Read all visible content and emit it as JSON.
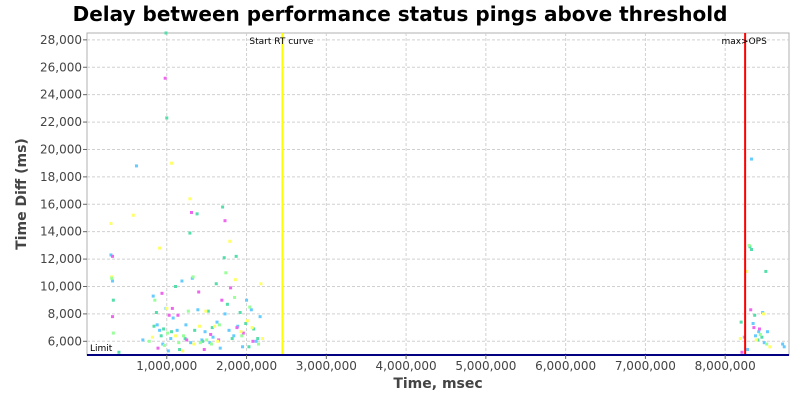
{
  "chart_data": {
    "type": "scatter",
    "title": "Delay between performance status pings above threshold",
    "xlabel": "Time, msec",
    "ylabel": "Time Diff (ms)",
    "xlim": [
      0,
      8800000
    ],
    "ylim": [
      5000,
      28500
    ],
    "x_ticks": [
      1000000,
      2000000,
      3000000,
      4000000,
      5000000,
      6000000,
      7000000,
      8000000
    ],
    "x_tick_labels": [
      "1,000,000",
      "2,000,000",
      "3,000,000",
      "4,000,000",
      "5,000,000",
      "6,000,000",
      "7,000,000",
      "8,000,000"
    ],
    "y_ticks": [
      6000,
      8000,
      10000,
      12000,
      14000,
      16000,
      18000,
      20000,
      22000,
      24000,
      26000,
      28000
    ],
    "y_tick_labels": [
      "6,000",
      "8,000",
      "10,000",
      "12,000",
      "14,000",
      "16,000",
      "18,000",
      "20,000",
      "22,000",
      "24,000",
      "26,000",
      "28,000"
    ],
    "grid": true,
    "threshold": {
      "label": "Limit",
      "value": 5000,
      "color": "#000080"
    },
    "markers": [
      {
        "label": "Start RT curve",
        "x": 2450000,
        "color": "#ffff00"
      },
      {
        "label": "max>OPS",
        "x": 8250000,
        "color": "#ff0000"
      }
    ],
    "series": [
      {
        "color": "#66ccff",
        "points": [
          [
            300000,
            12300
          ],
          [
            320000,
            10400
          ],
          [
            620000,
            18800
          ],
          [
            700000,
            6100
          ],
          [
            830000,
            9300
          ],
          [
            880000,
            7200
          ],
          [
            910000,
            6800
          ],
          [
            950000,
            5800
          ],
          [
            990000,
            8400
          ],
          [
            1020000,
            5300
          ],
          [
            1050000,
            6200
          ],
          [
            1080000,
            7700
          ],
          [
            1130000,
            6800
          ],
          [
            1190000,
            10400
          ],
          [
            1240000,
            7200
          ],
          [
            1300000,
            5900
          ],
          [
            1320000,
            10600
          ],
          [
            1390000,
            8300
          ],
          [
            1440000,
            6100
          ],
          [
            1480000,
            6700
          ],
          [
            1540000,
            5900
          ],
          [
            1580000,
            6300
          ],
          [
            1630000,
            7400
          ],
          [
            1670000,
            5500
          ],
          [
            1730000,
            8000
          ],
          [
            1780000,
            6800
          ],
          [
            1840000,
            6400
          ],
          [
            1890000,
            7100
          ],
          [
            1950000,
            5600
          ],
          [
            2000000,
            9000
          ],
          [
            2060000,
            8300
          ],
          [
            2120000,
            6000
          ],
          [
            2170000,
            7800
          ],
          [
            8240000,
            6300
          ],
          [
            8280000,
            5400
          ],
          [
            8330000,
            19300
          ],
          [
            8350000,
            7300
          ],
          [
            8380000,
            6400
          ],
          [
            8420000,
            6700
          ],
          [
            8470000,
            8100
          ],
          [
            8490000,
            5900
          ],
          [
            8530000,
            6700
          ],
          [
            8720000,
            5800
          ],
          [
            8740000,
            5600
          ]
        ]
      },
      {
        "color": "#55ddaa",
        "points": [
          [
            330000,
            9000
          ],
          [
            400000,
            5200
          ],
          [
            840000,
            7100
          ],
          [
            870000,
            8100
          ],
          [
            930000,
            6400
          ],
          [
            960000,
            6900
          ],
          [
            990000,
            28500
          ],
          [
            1000000,
            22300
          ],
          [
            1060000,
            6700
          ],
          [
            1110000,
            10000
          ],
          [
            1160000,
            5400
          ],
          [
            1230000,
            6200
          ],
          [
            1290000,
            13900
          ],
          [
            1350000,
            6800
          ],
          [
            1380000,
            15300
          ],
          [
            1450000,
            6000
          ],
          [
            1520000,
            8200
          ],
          [
            1570000,
            7000
          ],
          [
            1620000,
            10200
          ],
          [
            1700000,
            15800
          ],
          [
            1720000,
            12100
          ],
          [
            1760000,
            8700
          ],
          [
            1820000,
            6200
          ],
          [
            1870000,
            12200
          ],
          [
            1920000,
            8100
          ],
          [
            1990000,
            7300
          ],
          [
            2030000,
            5600
          ],
          [
            2090000,
            6900
          ],
          [
            2140000,
            6200
          ],
          [
            8200000,
            7400
          ],
          [
            8310000,
            12900
          ],
          [
            8330000,
            12700
          ],
          [
            8370000,
            7900
          ],
          [
            8410000,
            6100
          ],
          [
            8460000,
            6300
          ],
          [
            8510000,
            11100
          ]
        ]
      },
      {
        "color": "#ee66ee",
        "points": [
          [
            320000,
            12200
          ],
          [
            320000,
            7800
          ],
          [
            890000,
            5500
          ],
          [
            940000,
            9500
          ],
          [
            980000,
            25200
          ],
          [
            1030000,
            7900
          ],
          [
            1070000,
            8400
          ],
          [
            1140000,
            7900
          ],
          [
            1250000,
            6100
          ],
          [
            1310000,
            15400
          ],
          [
            1400000,
            9600
          ],
          [
            1470000,
            5400
          ],
          [
            1550000,
            6500
          ],
          [
            1650000,
            6100
          ],
          [
            1690000,
            9000
          ],
          [
            1730000,
            14800
          ],
          [
            1800000,
            9900
          ],
          [
            1880000,
            7000
          ],
          [
            1960000,
            6600
          ],
          [
            2080000,
            6000
          ],
          [
            8210000,
            5200
          ],
          [
            8320000,
            8300
          ],
          [
            8360000,
            7000
          ],
          [
            8430000,
            6900
          ]
        ]
      },
      {
        "color": "#ffff66",
        "points": [
          [
            300000,
            14600
          ],
          [
            310000,
            10700
          ],
          [
            580000,
            15200
          ],
          [
            820000,
            6300
          ],
          [
            910000,
            12800
          ],
          [
            1000000,
            8400
          ],
          [
            1060000,
            19000
          ],
          [
            1110000,
            6400
          ],
          [
            1200000,
            5300
          ],
          [
            1290000,
            16400
          ],
          [
            1340000,
            5800
          ],
          [
            1410000,
            7100
          ],
          [
            1490000,
            8200
          ],
          [
            1600000,
            7100
          ],
          [
            1640000,
            6000
          ],
          [
            1790000,
            13300
          ],
          [
            1860000,
            10500
          ],
          [
            1930000,
            6700
          ],
          [
            2010000,
            7500
          ],
          [
            2070000,
            7000
          ],
          [
            2180000,
            10200
          ],
          [
            2200000,
            6200
          ],
          [
            8190000,
            6200
          ],
          [
            8270000,
            11100
          ],
          [
            8390000,
            6100
          ],
          [
            8480000,
            8000
          ],
          [
            8560000,
            5600
          ]
        ]
      },
      {
        "color": "#99ff99",
        "points": [
          [
            310000,
            10600
          ],
          [
            330000,
            6600
          ],
          [
            780000,
            6000
          ],
          [
            850000,
            9000
          ],
          [
            970000,
            5700
          ],
          [
            1010000,
            6600
          ],
          [
            1150000,
            5900
          ],
          [
            1210000,
            6400
          ],
          [
            1270000,
            8200
          ],
          [
            1330000,
            10700
          ],
          [
            1420000,
            5900
          ],
          [
            1500000,
            6100
          ],
          [
            1560000,
            5800
          ],
          [
            1660000,
            7200
          ],
          [
            1740000,
            11000
          ],
          [
            1850000,
            9200
          ],
          [
            1940000,
            6400
          ],
          [
            2040000,
            8500
          ],
          [
            2150000,
            5800
          ],
          [
            8300000,
            13000
          ],
          [
            8440000,
            6500
          ],
          [
            8520000,
            5800
          ]
        ]
      }
    ]
  }
}
